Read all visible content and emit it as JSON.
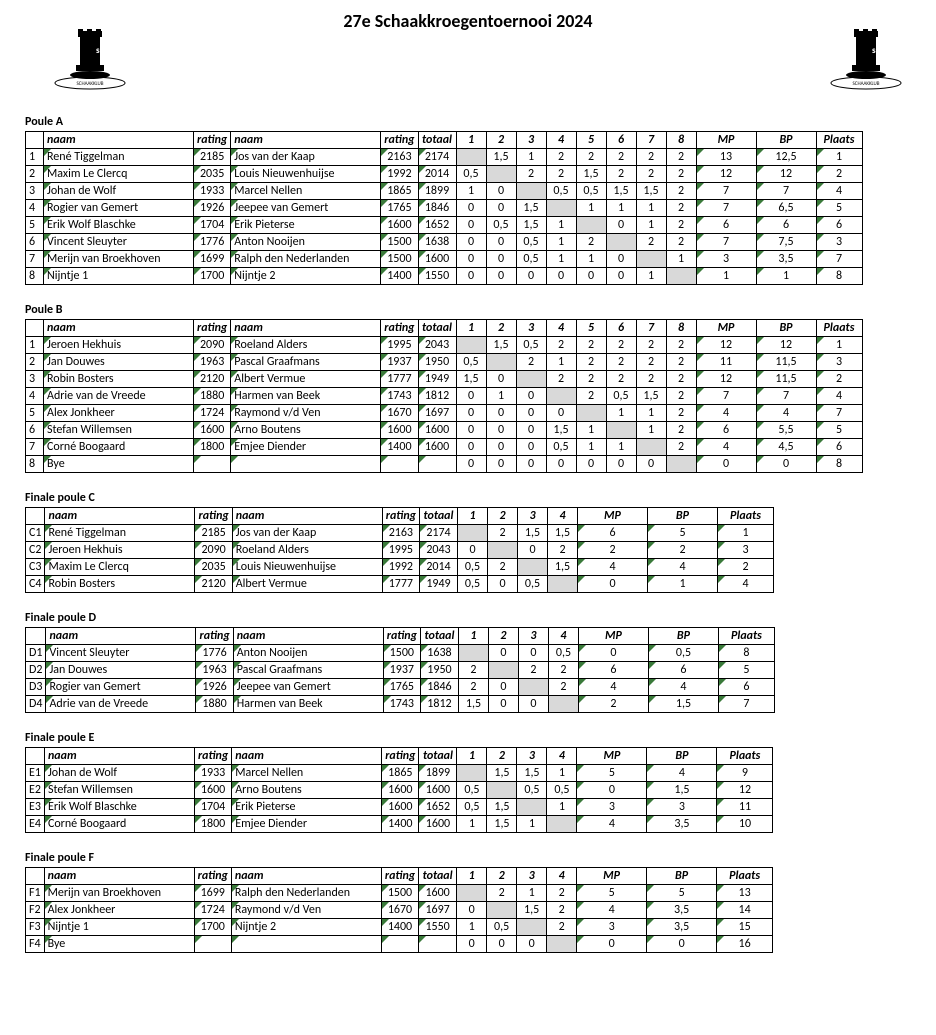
{
  "title": "27e Schaakkroegentoernooi 2024",
  "columns": {
    "naam": "naam",
    "rating": "rating",
    "totaal": "totaal",
    "mp": "MP",
    "bp": "BP",
    "plaats": "Plaats"
  },
  "poules8": [
    {
      "label": "Poule A",
      "rows": [
        {
          "id": "1",
          "n1": "René Tiggelman",
          "r1": "2185",
          "n2": "Jos van der Kaap",
          "r2": "2163",
          "tot": "2174",
          "r": [
            "",
            "1,5",
            "1",
            "2",
            "2",
            "2",
            "2",
            "2"
          ],
          "mp": "13",
          "bp": "12,5",
          "pl": "1",
          "self": 0
        },
        {
          "id": "2",
          "n1": "Maxim Le Clercq",
          "r1": "2035",
          "n2": "Louis  Nieuwenhuijse",
          "r2": "1992",
          "tot": "2014",
          "r": [
            "0,5",
            "",
            "2",
            "2",
            "1,5",
            "2",
            "2",
            "2"
          ],
          "mp": "12",
          "bp": "12",
          "pl": "2",
          "self": 1
        },
        {
          "id": "3",
          "n1": "Johan de Wolf",
          "r1": "1933",
          "n2": "Marcel  Nellen",
          "r2": "1865",
          "tot": "1899",
          "r": [
            "1",
            "0",
            "",
            "0,5",
            "0,5",
            "1,5",
            "1,5",
            "2"
          ],
          "mp": "7",
          "bp": "7",
          "pl": "4",
          "self": 2
        },
        {
          "id": "4",
          "n1": "Rogier van Gemert",
          "r1": "1926",
          "n2": "Jeepee van Gemert",
          "r2": "1765",
          "tot": "1846",
          "r": [
            "0",
            "0",
            "1,5",
            "",
            "1",
            "1",
            "1",
            "2"
          ],
          "mp": "7",
          "bp": "6,5",
          "pl": "5",
          "self": 3
        },
        {
          "id": "5",
          "n1": "Erik Wolf Blaschke",
          "r1": "1704",
          "n2": "Erik Pieterse",
          "r2": "1600",
          "tot": "1652",
          "r": [
            "0",
            "0,5",
            "1,5",
            "1",
            "",
            "0",
            "1",
            "2"
          ],
          "mp": "6",
          "bp": "6",
          "pl": "6",
          "self": 4
        },
        {
          "id": "6",
          "n1": "Vincent Sleuyter",
          "r1": "1776",
          "n2": "Anton Nooijen",
          "r2": "1500",
          "tot": "1638",
          "r": [
            "0",
            "0",
            "0,5",
            "1",
            "2",
            "",
            "2",
            "2"
          ],
          "mp": "7",
          "bp": "7,5",
          "pl": "3",
          "self": 5
        },
        {
          "id": "7",
          "n1": "Merijn van Broekhoven",
          "r1": "1699",
          "n2": "Ralph den Nederlanden",
          "r2": "1500",
          "tot": "1600",
          "r": [
            "0",
            "0",
            "0,5",
            "1",
            "1",
            "0",
            "",
            "1"
          ],
          "mp": "3",
          "bp": "3,5",
          "pl": "7",
          "self": 6
        },
        {
          "id": "8",
          "n1": "Nijntje 1",
          "r1": "1700",
          "n2": "Nijntje 2",
          "r2": "1400",
          "tot": "1550",
          "r": [
            "0",
            "0",
            "0",
            "0",
            "0",
            "0",
            "1",
            ""
          ],
          "mp": "1",
          "bp": "1",
          "pl": "8",
          "self": 7
        }
      ]
    },
    {
      "label": "Poule B",
      "rows": [
        {
          "id": "1",
          "n1": "Jeroen Hekhuis",
          "r1": "2090",
          "n2": "Roeland Alders",
          "r2": "1995",
          "tot": "2043",
          "r": [
            "",
            "1,5",
            "0,5",
            "2",
            "2",
            "2",
            "2",
            "2"
          ],
          "mp": "12",
          "bp": "12",
          "pl": "1",
          "self": 0
        },
        {
          "id": "2",
          "n1": "Jan Douwes",
          "r1": "1963",
          "n2": "Pascal  Graafmans",
          "r2": "1937",
          "tot": "1950",
          "r": [
            "0,5",
            "",
            "2",
            "1",
            "2",
            "2",
            "2",
            "2"
          ],
          "mp": "11",
          "bp": "11,5",
          "pl": "3",
          "self": 1
        },
        {
          "id": "3",
          "n1": "Robin Bosters",
          "r1": "2120",
          "n2": "Albert Vermue",
          "r2": "1777",
          "tot": "1949",
          "r": [
            "1,5",
            "0",
            "",
            "2",
            "2",
            "2",
            "2",
            "2"
          ],
          "mp": "12",
          "bp": "11,5",
          "pl": "2",
          "self": 2
        },
        {
          "id": "4",
          "n1": "Adrie van de Vreede",
          "r1": "1880",
          "n2": "Harmen van Beek",
          "r2": "1743",
          "tot": "1812",
          "r": [
            "0",
            "1",
            "0",
            "",
            "2",
            "0,5",
            "1,5",
            "2"
          ],
          "mp": "7",
          "bp": "7",
          "pl": "4",
          "self": 3
        },
        {
          "id": "5",
          "n1": "Alex Jonkheer",
          "r1": "1724",
          "n2": "Raymond v/d Ven",
          "r2": "1670",
          "tot": "1697",
          "r": [
            "0",
            "0",
            "0",
            "0",
            "",
            "1",
            "1",
            "2"
          ],
          "mp": "4",
          "bp": "4",
          "pl": "7",
          "self": 4
        },
        {
          "id": "6",
          "n1": "Stefan Willemsen",
          "r1": "1600",
          "n2": "Arno Boutens",
          "r2": "1600",
          "tot": "1600",
          "r": [
            "0",
            "0",
            "0",
            "1,5",
            "1",
            "",
            "1",
            "2"
          ],
          "mp": "6",
          "bp": "5,5",
          "pl": "5",
          "self": 5
        },
        {
          "id": "7",
          "n1": "Corné Boogaard",
          "r1": "1800",
          "n2": "Emjee Diender",
          "r2": "1400",
          "tot": "1600",
          "r": [
            "0",
            "0",
            "0",
            "0,5",
            "1",
            "1",
            "",
            "2"
          ],
          "mp": "4",
          "bp": "4,5",
          "pl": "6",
          "self": 6
        },
        {
          "id": "8",
          "n1": "Bye",
          "r1": "",
          "n2": "",
          "r2": "",
          "tot": "",
          "r": [
            "0",
            "0",
            "0",
            "0",
            "0",
            "0",
            "0",
            ""
          ],
          "mp": "0",
          "bp": "0",
          "pl": "8",
          "self": 7
        }
      ]
    }
  ],
  "poules4": [
    {
      "label": "Finale poule C",
      "rows": [
        {
          "id": "C1",
          "n1": "René Tiggelman",
          "r1": "2185",
          "n2": "Jos van der Kaap",
          "r2": "2163",
          "tot": "2174",
          "r": [
            "",
            "2",
            "1,5",
            "1,5"
          ],
          "mp": "6",
          "bp": "5",
          "pl": "1",
          "self": 0
        },
        {
          "id": "C2",
          "n1": "Jeroen Hekhuis",
          "r1": "2090",
          "n2": "Roeland Alders",
          "r2": "1995",
          "tot": "2043",
          "r": [
            "0",
            "",
            "0",
            "2"
          ],
          "mp": "2",
          "bp": "2",
          "pl": "3",
          "self": 1
        },
        {
          "id": "C3",
          "n1": "Maxim Le Clercq",
          "r1": "2035",
          "n2": "Louis  Nieuwenhuijse",
          "r2": "1992",
          "tot": "2014",
          "r": [
            "0,5",
            "2",
            "",
            "1,5"
          ],
          "mp": "4",
          "bp": "4",
          "pl": "2",
          "self": 2
        },
        {
          "id": "C4",
          "n1": "Robin Bosters",
          "r1": "2120",
          "n2": "Albert Vermue",
          "r2": "1777",
          "tot": "1949",
          "r": [
            "0,5",
            "0",
            "0,5",
            ""
          ],
          "mp": "0",
          "bp": "1",
          "pl": "4",
          "self": 3
        }
      ]
    },
    {
      "label": "Finale poule D",
      "rows": [
        {
          "id": "D1",
          "n1": "Vincent Sleuyter",
          "r1": "1776",
          "n2": "Anton Nooijen",
          "r2": "1500",
          "tot": "1638",
          "r": [
            "",
            "0",
            "0",
            "0,5"
          ],
          "mp": "0",
          "bp": "0,5",
          "pl": "8",
          "self": 0
        },
        {
          "id": "D2",
          "n1": "Jan Douwes",
          "r1": "1963",
          "n2": "Pascal  Graafmans",
          "r2": "1937",
          "tot": "1950",
          "r": [
            "2",
            "",
            "2",
            "2"
          ],
          "mp": "6",
          "bp": "6",
          "pl": "5",
          "self": 1
        },
        {
          "id": "D3",
          "n1": "Rogier van Gemert",
          "r1": "1926",
          "n2": "Jeepee van Gemert",
          "r2": "1765",
          "tot": "1846",
          "r": [
            "2",
            "0",
            "",
            "2"
          ],
          "mp": "4",
          "bp": "4",
          "pl": "6",
          "self": 2
        },
        {
          "id": "D4",
          "n1": "Adrie van de Vreede",
          "r1": "1880",
          "n2": "Harmen van Beek",
          "r2": "1743",
          "tot": "1812",
          "r": [
            "1,5",
            "0",
            "0",
            ""
          ],
          "mp": "2",
          "bp": "1,5",
          "pl": "7",
          "self": 3
        }
      ]
    },
    {
      "label": "Finale poule E",
      "rows": [
        {
          "id": "E1",
          "n1": "Johan de Wolf",
          "r1": "1933",
          "n2": "Marcel  Nellen",
          "r2": "1865",
          "tot": "1899",
          "r": [
            "",
            "1,5",
            "1,5",
            "1"
          ],
          "mp": "5",
          "bp": "4",
          "pl": "9",
          "self": 0
        },
        {
          "id": "E2",
          "n1": "Stefan Willemsen",
          "r1": "1600",
          "n2": "Arno Boutens",
          "r2": "1600",
          "tot": "1600",
          "r": [
            "0,5",
            "",
            "0,5",
            "0,5"
          ],
          "mp": "0",
          "bp": "1,5",
          "pl": "12",
          "self": 1
        },
        {
          "id": "E3",
          "n1": "Erik Wolf Blaschke",
          "r1": "1704",
          "n2": "Erik Pieterse",
          "r2": "1600",
          "tot": "1652",
          "r": [
            "0,5",
            "1,5",
            "",
            "1"
          ],
          "mp": "3",
          "bp": "3",
          "pl": "11",
          "self": 2
        },
        {
          "id": "E4",
          "n1": "Corné Boogaard",
          "r1": "1800",
          "n2": "Emjee Diender",
          "r2": "1400",
          "tot": "1600",
          "r": [
            "1",
            "1,5",
            "1",
            ""
          ],
          "mp": "4",
          "bp": "3,5",
          "pl": "10",
          "self": 3
        }
      ]
    },
    {
      "label": "Finale poule F",
      "rows": [
        {
          "id": "F1",
          "n1": "Merijn van Broekhoven",
          "r1": "1699",
          "n2": "Ralph den Nederlanden",
          "r2": "1500",
          "tot": "1600",
          "r": [
            "",
            "2",
            "1",
            "2"
          ],
          "mp": "5",
          "bp": "5",
          "pl": "13",
          "self": 0
        },
        {
          "id": "F2",
          "n1": "Alex Jonkheer",
          "r1": "1724",
          "n2": "Raymond v/d Ven",
          "r2": "1670",
          "tot": "1697",
          "r": [
            "0",
            "",
            "1,5",
            "2"
          ],
          "mp": "4",
          "bp": "3,5",
          "pl": "14",
          "self": 1
        },
        {
          "id": "F3",
          "n1": "Nijntje 1",
          "r1": "1700",
          "n2": "Nijntje 2",
          "r2": "1400",
          "tot": "1550",
          "r": [
            "1",
            "0,5",
            "",
            "2"
          ],
          "mp": "3",
          "bp": "3,5",
          "pl": "15",
          "self": 2
        },
        {
          "id": "F4",
          "n1": "Bye",
          "r1": "",
          "n2": "",
          "r2": "",
          "tot": "",
          "r": [
            "0",
            "0",
            "0",
            ""
          ],
          "mp": "0",
          "bp": "0",
          "pl": "16",
          "self": 3
        }
      ]
    }
  ]
}
